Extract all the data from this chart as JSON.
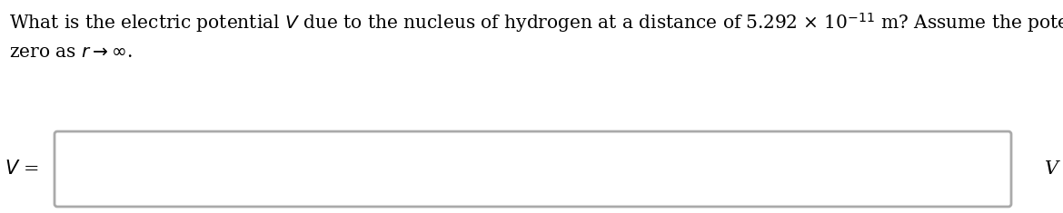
{
  "line1": "What is the electric potential $V$ due to the nucleus of hydrogen at a distance of 5.292 × 10$^{-11}$ m? Assume the potential equals",
  "line2": "zero as $r \\rightarrow \\infty$.",
  "label_left": "$V$ =",
  "label_right": "V",
  "bg_color": "#ffffff",
  "text_color": "#000000",
  "box_edge_color": "#aaaaaa",
  "box_fill_color": "#ffffff",
  "font_size": 14.5,
  "label_font_size": 15
}
